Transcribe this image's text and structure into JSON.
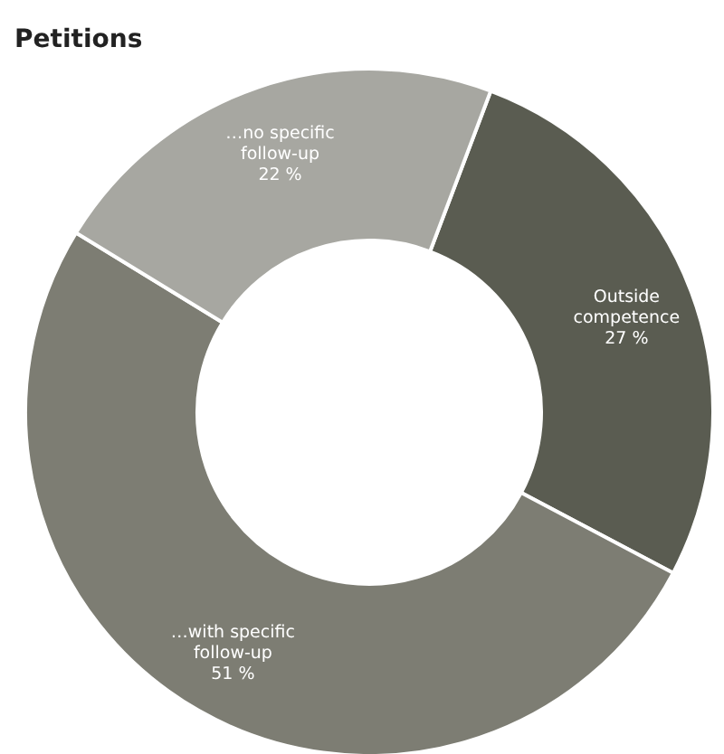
{
  "chart_data": {
    "type": "donut",
    "title": "Petitions",
    "categories": [
      "Outside competence",
      "…with specific follow-up",
      "…no specific follow-up"
    ],
    "values": [
      27,
      51,
      22
    ],
    "value_labels": [
      "27 %",
      "51 %",
      "22 %"
    ],
    "colors": [
      "#5a5c51",
      "#7d7d73",
      "#a7a7a1"
    ],
    "legend": false
  }
}
